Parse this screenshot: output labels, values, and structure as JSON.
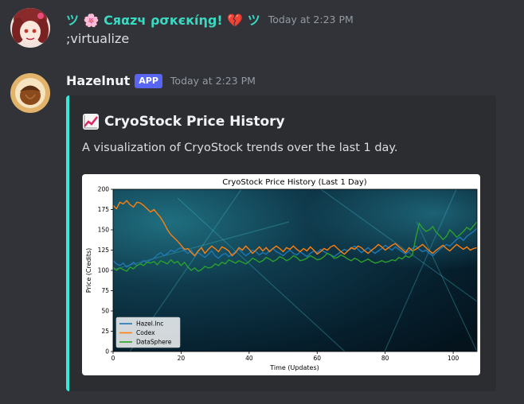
{
  "message1": {
    "username": "ツ 🌸 Cяαzч ρσкєкíηg! 💔 ツ",
    "timestamp": "Today at 2:23 PM",
    "content": ";virtualize",
    "colors": {
      "username": "#3ad9c2"
    }
  },
  "message2": {
    "username": "Hazelnut",
    "badge": "APP",
    "timestamp": "Today at 2:23 PM",
    "embed": {
      "title": "CryoStock Price History",
      "title_icon": "chart-increasing-icon",
      "description": "A visualization of CryoStock trends over the last 1 day.",
      "accent_color": "#35ead6"
    }
  },
  "chart_data": {
    "type": "line",
    "title": "CryoStock Price History (Last 1 Day)",
    "xlabel": "Time (Updates)",
    "ylabel": "Price (Credits)",
    "xlim": [
      0,
      107
    ],
    "ylim": [
      0,
      200
    ],
    "xticks": [
      0,
      20,
      40,
      60,
      80,
      100
    ],
    "yticks": [
      0,
      25,
      50,
      75,
      100,
      125,
      150,
      175,
      200
    ],
    "legend_position": "bottom-left",
    "grid": false,
    "series": [
      {
        "name": "Hazel.Inc",
        "color": "#1f77b4",
        "values": [
          112,
          108,
          106,
          109,
          104,
          107,
          110,
          106,
          108,
          112,
          110,
          113,
          115,
          119,
          122,
          118,
          121,
          125,
          123,
          126,
          128,
          124,
          121,
          125,
          118,
          122,
          119,
          116,
          120,
          124,
          118,
          115,
          119,
          121,
          117,
          120,
          123,
          126,
          122,
          118,
          121,
          125,
          123,
          119,
          122,
          120,
          124,
          127,
          123,
          121,
          118,
          122,
          125,
          121,
          119,
          123,
          120,
          117,
          121,
          124,
          122,
          126,
          123,
          121,
          119,
          117,
          120,
          123,
          126,
          124,
          127,
          130,
          126,
          122,
          125,
          128,
          124,
          121,
          124,
          127,
          131,
          128,
          125,
          129,
          126,
          123,
          120,
          124,
          127,
          130,
          126,
          123,
          125,
          121,
          118,
          122,
          126,
          129,
          132,
          130,
          134,
          138,
          141,
          137,
          142,
          145,
          148,
          152
        ]
      },
      {
        "name": "Codex",
        "color": "#ff7f0e",
        "values": [
          180,
          176,
          184,
          182,
          186,
          181,
          178,
          184,
          183,
          180,
          176,
          172,
          175,
          170,
          165,
          158,
          150,
          144,
          140,
          136,
          131,
          126,
          127,
          122,
          118,
          124,
          128,
          121,
          126,
          130,
          127,
          123,
          129,
          127,
          124,
          118,
          122,
          128,
          125,
          130,
          126,
          121,
          125,
          129,
          124,
          128,
          123,
          127,
          130,
          127,
          123,
          128,
          126,
          130,
          126,
          123,
          127,
          124,
          129,
          125,
          120,
          123,
          127,
          125,
          129,
          131,
          127,
          123,
          120,
          124,
          128,
          126,
          130,
          128,
          124,
          121,
          125,
          128,
          132,
          129,
          125,
          128,
          131,
          133,
          129,
          126,
          122,
          128,
          124,
          126,
          129,
          132,
          128,
          124,
          121,
          125,
          128,
          131,
          127,
          124,
          128,
          132,
          129,
          126,
          129,
          125,
          127,
          128
        ]
      },
      {
        "name": "DataSphere",
        "color": "#2ca02c",
        "values": [
          104,
          100,
          103,
          101,
          99,
          104,
          102,
          106,
          108,
          106,
          110,
          109,
          111,
          107,
          112,
          110,
          108,
          113,
          109,
          111,
          106,
          110,
          104,
          100,
          103,
          99,
          101,
          105,
          103,
          104,
          108,
          106,
          110,
          108,
          113,
          111,
          109,
          112,
          110,
          108,
          111,
          115,
          113,
          110,
          112,
          116,
          114,
          111,
          113,
          117,
          115,
          112,
          114,
          118,
          116,
          112,
          113,
          115,
          118,
          116,
          113,
          114,
          117,
          121,
          119,
          115,
          116,
          119,
          117,
          114,
          112,
          115,
          113,
          110,
          112,
          114,
          111,
          109,
          110,
          112,
          110,
          111,
          113,
          112,
          116,
          114,
          118,
          116,
          119,
          140,
          158,
          152,
          148,
          150,
          154,
          147,
          143,
          138,
          142,
          150,
          146,
          141,
          144,
          148,
          153,
          150,
          155,
          160
        ]
      }
    ]
  }
}
